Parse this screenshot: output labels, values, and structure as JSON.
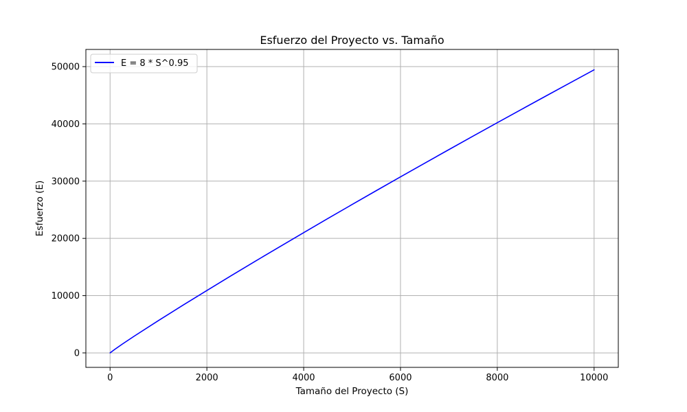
{
  "chart_data": {
    "type": "line",
    "title": "Esfuerzo del Proyecto vs. Tamaño",
    "xlabel": "Tamaño del Proyecto (S)",
    "ylabel": "Esfuerzo (E)",
    "xlim": [
      -500,
      10500
    ],
    "ylim": [
      -2525,
      53000
    ],
    "x_ticks": [
      0,
      2000,
      4000,
      6000,
      8000,
      10000
    ],
    "x_tick_labels": [
      "0",
      "2000",
      "4000",
      "6000",
      "8000",
      "10000"
    ],
    "y_ticks": [
      0,
      10000,
      20000,
      30000,
      40000,
      50000
    ],
    "y_tick_labels": [
      "0",
      "10000",
      "20000",
      "30000",
      "40000",
      "50000"
    ],
    "grid": true,
    "legend_position": "top-left",
    "series": [
      {
        "name": "E = 8 * S^0.95",
        "color": "#0000ff",
        "x": [
          1,
          100,
          250,
          500,
          1000,
          1500,
          2000,
          2500,
          3000,
          3500,
          4000,
          4500,
          5000,
          5500,
          6000,
          6500,
          7000,
          7500,
          8000,
          8500,
          9000,
          9500,
          10000
        ],
        "y": [
          8,
          637,
          1523,
          2931,
          5651,
          8303,
          10897,
          13472,
          16011,
          18520,
          21009,
          23474,
          25916,
          28341,
          30745,
          33133,
          35505,
          37862,
          40203,
          42530,
          44846,
          47148,
          49437
        ]
      }
    ]
  }
}
